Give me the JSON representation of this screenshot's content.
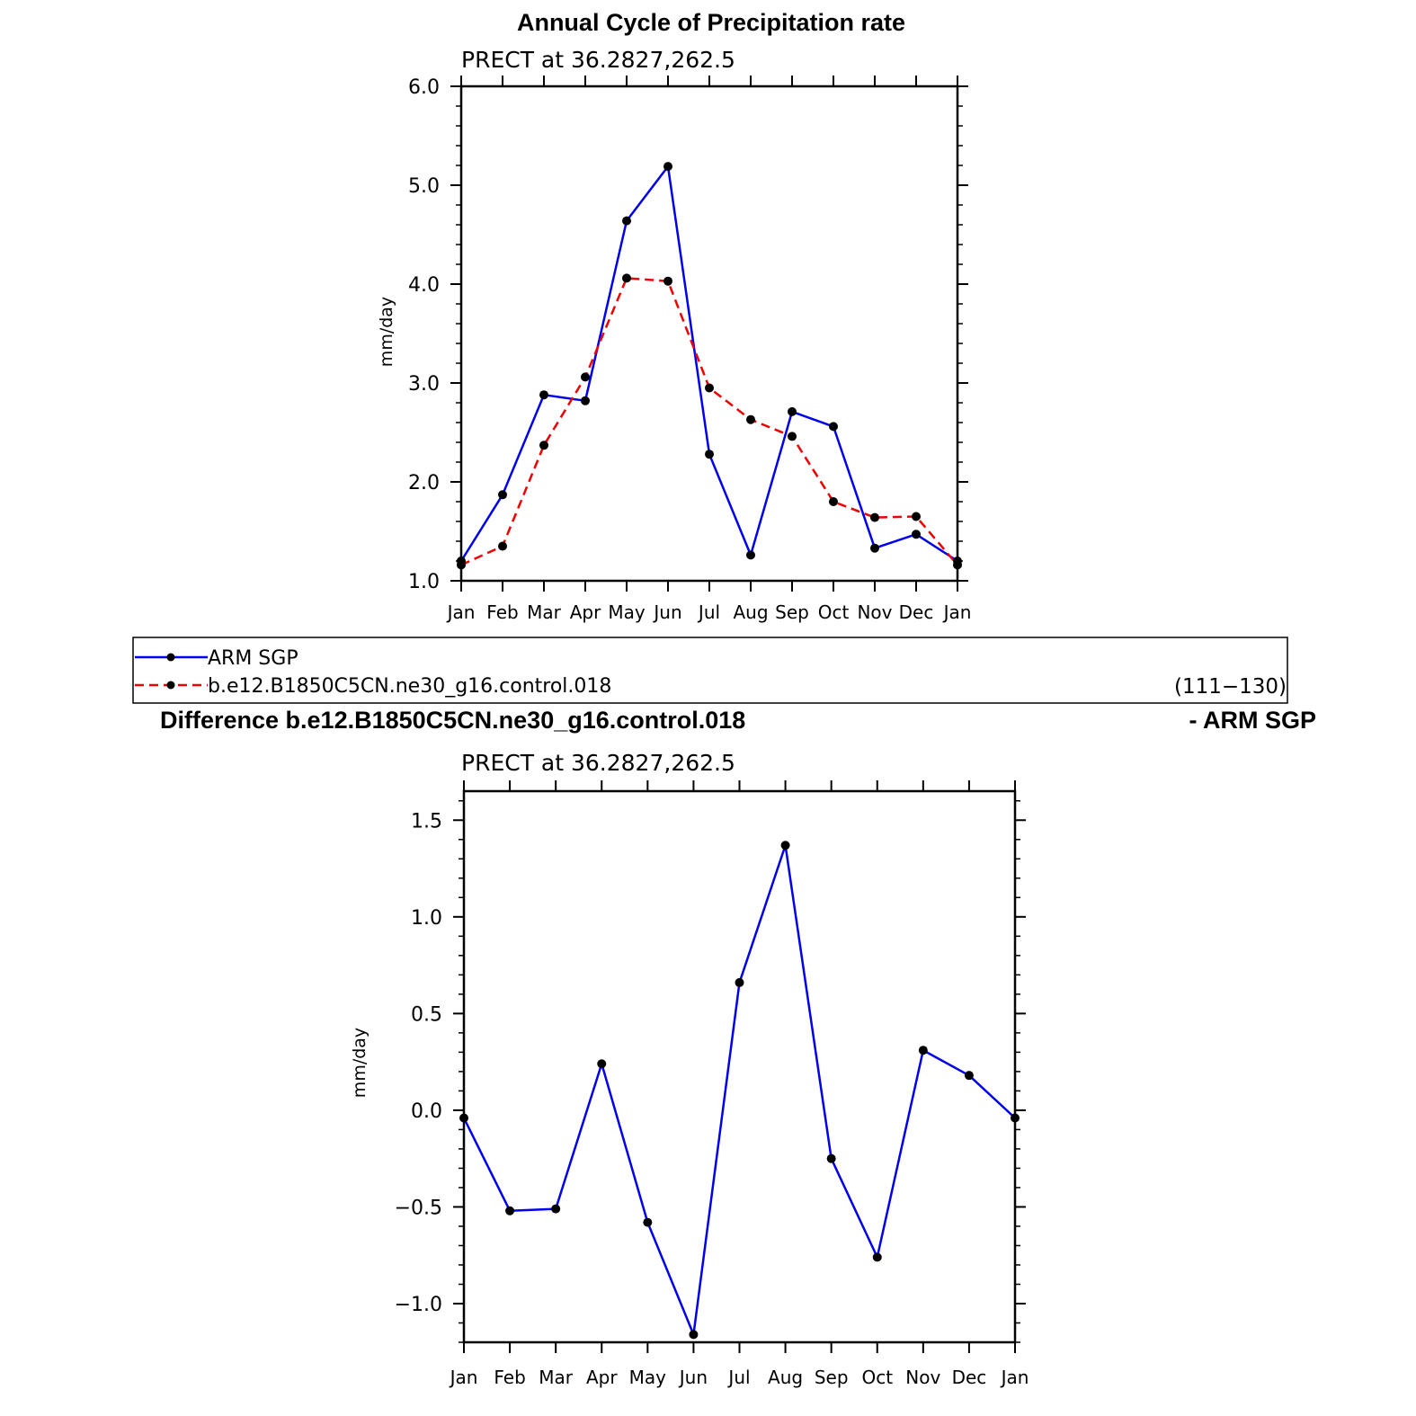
{
  "main_title": "Annual Cycle of Precipitation rate",
  "legend": {
    "entries": [
      "ARM SGP",
      "b.e12.B1850C5CN.ne30_g16.control.018"
    ],
    "range_label": "(111−130)"
  },
  "diff_title_left": "Difference b.e12.B1850C5CN.ne30_g16.control.018",
  "diff_title_right": "- ARM SGP",
  "colors": {
    "obs": "#0000ee",
    "model": "#ee0000",
    "diff": "#0000ee",
    "marker": "#000000"
  },
  "chart_data": [
    {
      "type": "line",
      "subtitle": "PRECT at 36.2827,262.5",
      "ylabel": "mm/day",
      "ylim": [
        1.0,
        6.0
      ],
      "yticks": [
        "1.0",
        "2.0",
        "3.0",
        "4.0",
        "5.0",
        "6.0"
      ],
      "categories": [
        "Jan",
        "Feb",
        "Mar",
        "Apr",
        "May",
        "Jun",
        "Jul",
        "Aug",
        "Sep",
        "Oct",
        "Nov",
        "Dec",
        "Jan"
      ],
      "series": [
        {
          "name": "ARM SGP",
          "style": "solid",
          "values": [
            1.2,
            1.87,
            2.88,
            2.82,
            4.64,
            5.19,
            2.28,
            1.26,
            2.71,
            2.56,
            1.33,
            1.47,
            1.2
          ]
        },
        {
          "name": "b.e12.B1850C5CN.ne30_g16.control.018",
          "style": "dashed",
          "values": [
            1.16,
            1.35,
            2.37,
            3.06,
            4.06,
            4.03,
            2.95,
            2.63,
            2.46,
            1.8,
            1.64,
            1.65,
            1.16
          ]
        }
      ]
    },
    {
      "type": "line",
      "subtitle": "PRECT at 36.2827,262.5",
      "ylabel": "mm/day",
      "ylim": [
        -1.2,
        1.65
      ],
      "yticks": [
        "−1.0",
        "−0.5",
        "0.0",
        "0.5",
        "1.0",
        "1.5"
      ],
      "categories": [
        "Jan",
        "Feb",
        "Mar",
        "Apr",
        "May",
        "Jun",
        "Jul",
        "Aug",
        "Sep",
        "Oct",
        "Nov",
        "Dec",
        "Jan"
      ],
      "series": [
        {
          "values": [
            -0.04,
            -0.52,
            -0.51,
            0.24,
            -0.58,
            -1.16,
            0.66,
            1.37,
            -0.25,
            -0.76,
            0.31,
            0.18,
            -0.04
          ]
        }
      ]
    }
  ]
}
